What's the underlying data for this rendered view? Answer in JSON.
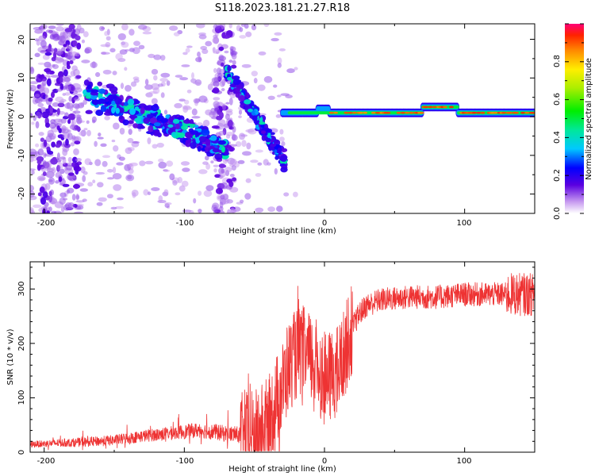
{
  "title": "S118.2023.181.21.27.R18",
  "chart_data": [
    {
      "type": "heatmap",
      "xlabel": "Height of straight line (km)",
      "ylabel": "Frequency (Hz)",
      "xlim": [
        -210,
        150
      ],
      "ylim": [
        -25,
        24
      ],
      "xticks": [
        "-200",
        "-100",
        "0",
        "100"
      ],
      "yticks": [
        "20",
        "10",
        "0",
        "-10",
        "-20"
      ],
      "colorbar": {
        "label": "Normalized spectral amplitude",
        "range": [
          0.0,
          1.0
        ],
        "ticks": [
          "0.0",
          "0.2",
          "0.4",
          "0.6",
          "0.8"
        ],
        "colormap": "rainbow"
      },
      "features": [
        {
          "x_range": [
            -210,
            -180
          ],
          "freq_range": [
            -25,
            24
          ]
        },
        {
          "x_range": [
            -165,
            -70
          ],
          "freq_start": 6,
          "freq_end": -8
        },
        {
          "x_range": [
            -70,
            -30
          ],
          "freq_start": 12,
          "freq_end": -12
        },
        {
          "x_range": [
            -30,
            150
          ],
          "freq": 1
        }
      ]
    },
    {
      "type": "line",
      "xlabel": "Height of straight line (km)",
      "ylabel": "SNR (10 * v/v)",
      "xlim": [
        -210,
        150
      ],
      "ylim": [
        0,
        350
      ],
      "xticks": [
        "-200",
        "-100",
        "0",
        "100"
      ],
      "yticks": [
        "0",
        "100",
        "200",
        "300"
      ],
      "color": "#ee3333",
      "series": [
        {
          "x": [
            -210,
            -190,
            -170,
            -150,
            -130,
            -110,
            -90,
            -70,
            -60,
            -50,
            -40,
            -35,
            -30,
            -25,
            -20,
            -15,
            -10,
            -5,
            0,
            5,
            10,
            15,
            20,
            25,
            30,
            40,
            60,
            80,
            100,
            120,
            140,
            150
          ],
          "y": [
            12,
            14,
            15,
            18,
            25,
            30,
            35,
            28,
            25,
            30,
            55,
            90,
            120,
            160,
            180,
            185,
            170,
            160,
            130,
            140,
            150,
            190,
            230,
            255,
            270,
            280,
            285,
            285,
            290,
            290,
            290,
            290
          ]
        }
      ]
    }
  ]
}
